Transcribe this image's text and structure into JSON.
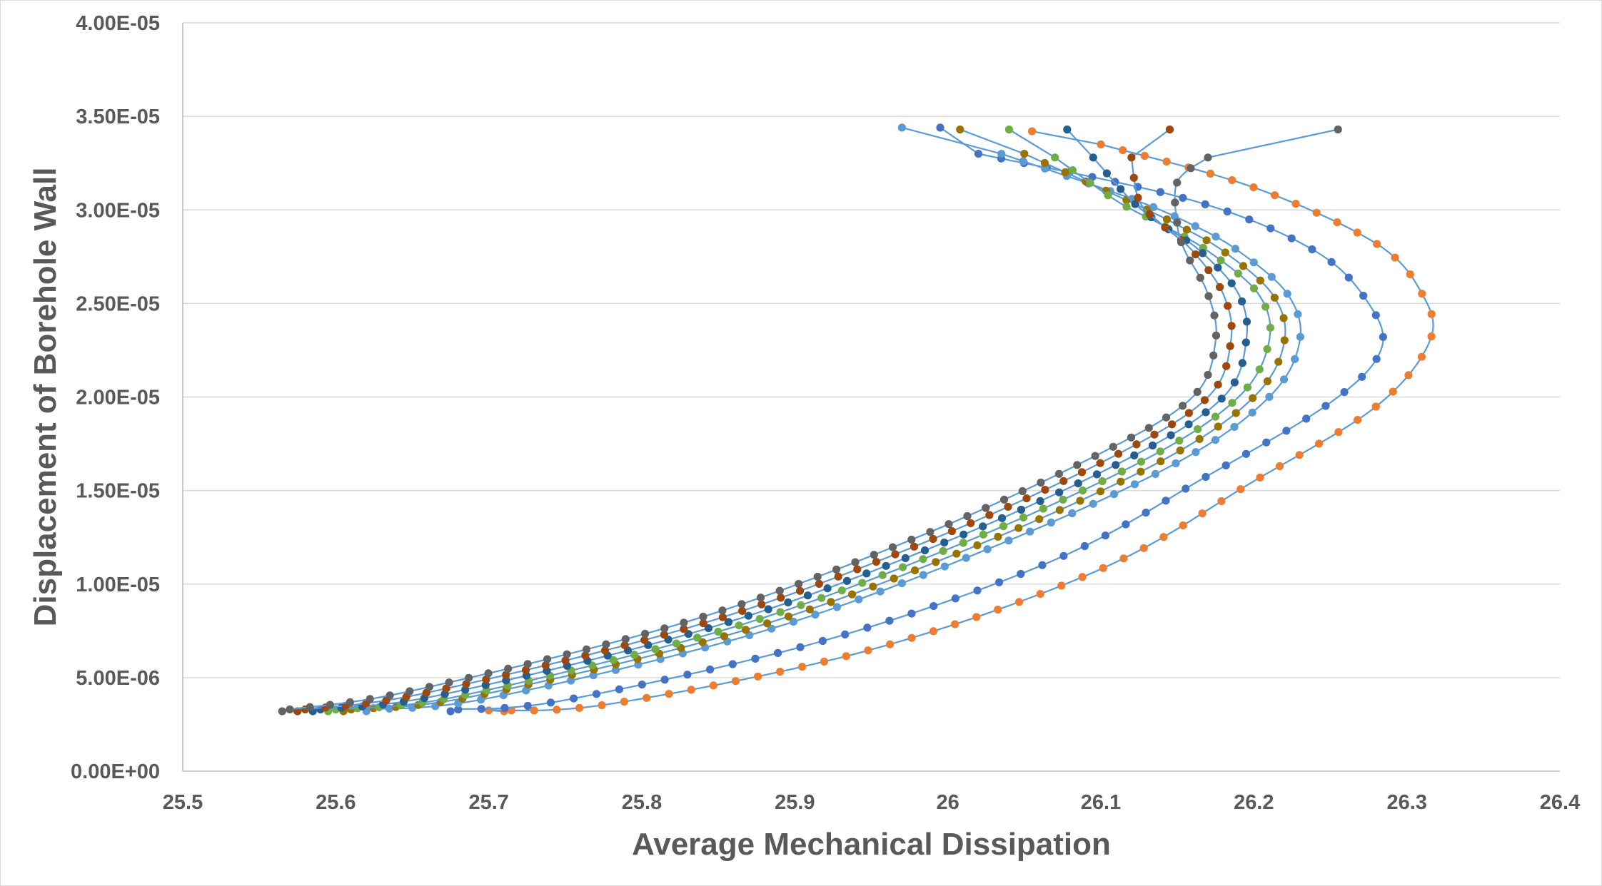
{
  "chart_data": {
    "type": "scatter",
    "title": "",
    "xlabel": "Average Mechanical Dissipation",
    "ylabel": "Displacement of Borehole Wall",
    "xlim": [
      25.5,
      26.4
    ],
    "ylim": [
      0,
      4e-05
    ],
    "x_ticks": [
      "25.5",
      "25.6",
      "25.7",
      "25.8",
      "25.9",
      "26",
      "26.1",
      "26.2",
      "26.3",
      "26.4"
    ],
    "y_ticks": [
      "0.00E+00",
      "5.00E-06",
      "1.00E-05",
      "1.50E-05",
      "2.00E-05",
      "2.50E-05",
      "3.00E-05",
      "3.50E-05",
      "4.00E-05"
    ],
    "grid": "horizontal",
    "legend": "none",
    "markers": true,
    "line_color": "#5B9BD5",
    "series": [
      {
        "color": "#ED7D31",
        "start": [
          25.71,
          3.2e-06
        ],
        "end": [
          26.055,
          3.42e-05
        ],
        "n": 65,
        "ctrl": [
          [
            25.7,
            3.25e-06
          ],
          [
            25.78,
            3.6e-06
          ],
          [
            25.95,
            6.5e-06
          ],
          [
            26.1,
            1.08e-05
          ],
          [
            26.2,
            1.55e-05
          ],
          [
            26.28,
            1.95e-05
          ],
          [
            26.315,
            2.3e-05
          ],
          [
            26.31,
            2.55e-05
          ],
          [
            26.28,
            2.82e-05
          ],
          [
            26.2,
            3.12e-05
          ],
          [
            26.1,
            3.35e-05
          ]
        ]
      },
      {
        "color": "#4472C4",
        "start": [
          25.675,
          3.2e-06
        ],
        "end": [
          25.995,
          3.44e-05
        ],
        "n": 65,
        "ctrl": [
          [
            25.68,
            3.3e-06
          ],
          [
            25.75,
            3.8e-06
          ],
          [
            25.92,
            7e-06
          ],
          [
            26.07,
            1.13e-05
          ],
          [
            26.17,
            1.58e-05
          ],
          [
            26.25,
            1.97e-05
          ],
          [
            26.283,
            2.25e-05
          ],
          [
            26.275,
            2.5e-05
          ],
          [
            26.24,
            2.78e-05
          ],
          [
            26.16,
            3.05e-05
          ],
          [
            26.02,
            3.3e-05
          ]
        ]
      },
      {
        "color": "#5B9BD5",
        "start": [
          25.62,
          3.2e-06
        ],
        "end": [
          25.97,
          3.44e-05
        ],
        "n": 62,
        "ctrl": [
          [
            25.62,
            3.3e-06
          ],
          [
            25.7,
            3.9e-06
          ],
          [
            25.88,
            7.5e-06
          ],
          [
            26.03,
            1.2e-05
          ],
          [
            26.15,
            1.65e-05
          ],
          [
            26.21,
            2e-05
          ],
          [
            26.23,
            2.3e-05
          ],
          [
            26.222,
            2.55e-05
          ],
          [
            26.19,
            2.78e-05
          ],
          [
            26.16,
            2.92e-05
          ],
          [
            26.12,
            3.06e-05
          ],
          [
            26.035,
            3.3e-05
          ]
        ]
      },
      {
        "color": "#997300",
        "start": [
          25.605,
          3.2e-06
        ],
        "end": [
          26.008,
          3.43e-05
        ],
        "n": 62,
        "ctrl": [
          [
            25.61,
            3.3e-06
          ],
          [
            25.69,
            4e-06
          ],
          [
            25.87,
            7.6e-06
          ],
          [
            26.02,
            1.21e-05
          ],
          [
            26.14,
            1.66e-05
          ],
          [
            26.2,
            2e-05
          ],
          [
            26.22,
            2.3e-05
          ],
          [
            26.212,
            2.55e-05
          ],
          [
            26.18,
            2.78e-05
          ],
          [
            26.15,
            2.92e-05
          ],
          [
            26.12,
            3.04e-05
          ],
          [
            26.05,
            3.3e-05
          ]
        ]
      },
      {
        "color": "#70AD47",
        "start": [
          25.595,
          3.2e-06
        ],
        "end": [
          26.04,
          3.43e-05
        ],
        "n": 62,
        "ctrl": [
          [
            25.6,
            3.3e-06
          ],
          [
            25.68,
            4e-06
          ],
          [
            25.86,
            7.7e-06
          ],
          [
            26.01,
            1.22e-05
          ],
          [
            26.13,
            1.67e-05
          ],
          [
            26.19,
            2e-05
          ],
          [
            26.21,
            2.3e-05
          ],
          [
            26.203,
            2.55e-05
          ],
          [
            26.17,
            2.78e-05
          ],
          [
            26.14,
            2.92e-05
          ],
          [
            26.11,
            3.05e-05
          ],
          [
            26.07,
            3.28e-05
          ]
        ]
      },
      {
        "color": "#255E91",
        "start": [
          25.585,
          3.2e-06
        ],
        "end": [
          26.078,
          3.43e-05
        ],
        "n": 62,
        "ctrl": [
          [
            25.59,
            3.3e-06
          ],
          [
            25.67,
            4.1e-06
          ],
          [
            25.85,
            7.8e-06
          ],
          [
            26.0,
            1.23e-05
          ],
          [
            26.12,
            1.68e-05
          ],
          [
            26.18,
            2e-05
          ],
          [
            26.195,
            2.3e-05
          ],
          [
            26.19,
            2.55e-05
          ],
          [
            26.165,
            2.78e-05
          ],
          [
            26.14,
            2.92e-05
          ],
          [
            26.12,
            3.05e-05
          ],
          [
            26.095,
            3.28e-05
          ]
        ]
      },
      {
        "color": "#9E480E",
        "start": [
          25.575,
          3.2e-06
        ],
        "end": [
          26.145,
          3.43e-05
        ],
        "n": 62,
        "ctrl": [
          [
            25.58,
            3.3e-06
          ],
          [
            25.66,
            4.2e-06
          ],
          [
            25.84,
            7.9e-06
          ],
          [
            25.99,
            1.24e-05
          ],
          [
            26.11,
            1.69e-05
          ],
          [
            26.17,
            2e-05
          ],
          [
            26.185,
            2.3e-05
          ],
          [
            26.18,
            2.55e-05
          ],
          [
            26.16,
            2.78e-05
          ],
          [
            26.14,
            2.92e-05
          ],
          [
            26.125,
            3.05e-05
          ],
          [
            26.12,
            3.28e-05
          ]
        ]
      },
      {
        "color": "#636363",
        "start": [
          25.565,
          3.2e-06
        ],
        "end": [
          26.255,
          3.43e-05
        ],
        "n": 62,
        "ctrl": [
          [
            25.57,
            3.3e-06
          ],
          [
            25.65,
            4.3e-06
          ],
          [
            25.83,
            8e-06
          ],
          [
            25.98,
            1.25e-05
          ],
          [
            26.1,
            1.7e-05
          ],
          [
            26.16,
            2e-05
          ],
          [
            26.175,
            2.3e-05
          ],
          [
            26.17,
            2.55e-05
          ],
          [
            26.155,
            2.78e-05
          ],
          [
            26.15,
            2.92e-05
          ],
          [
            26.15,
            3.15e-05
          ],
          [
            26.17,
            3.28e-05
          ]
        ]
      }
    ]
  }
}
